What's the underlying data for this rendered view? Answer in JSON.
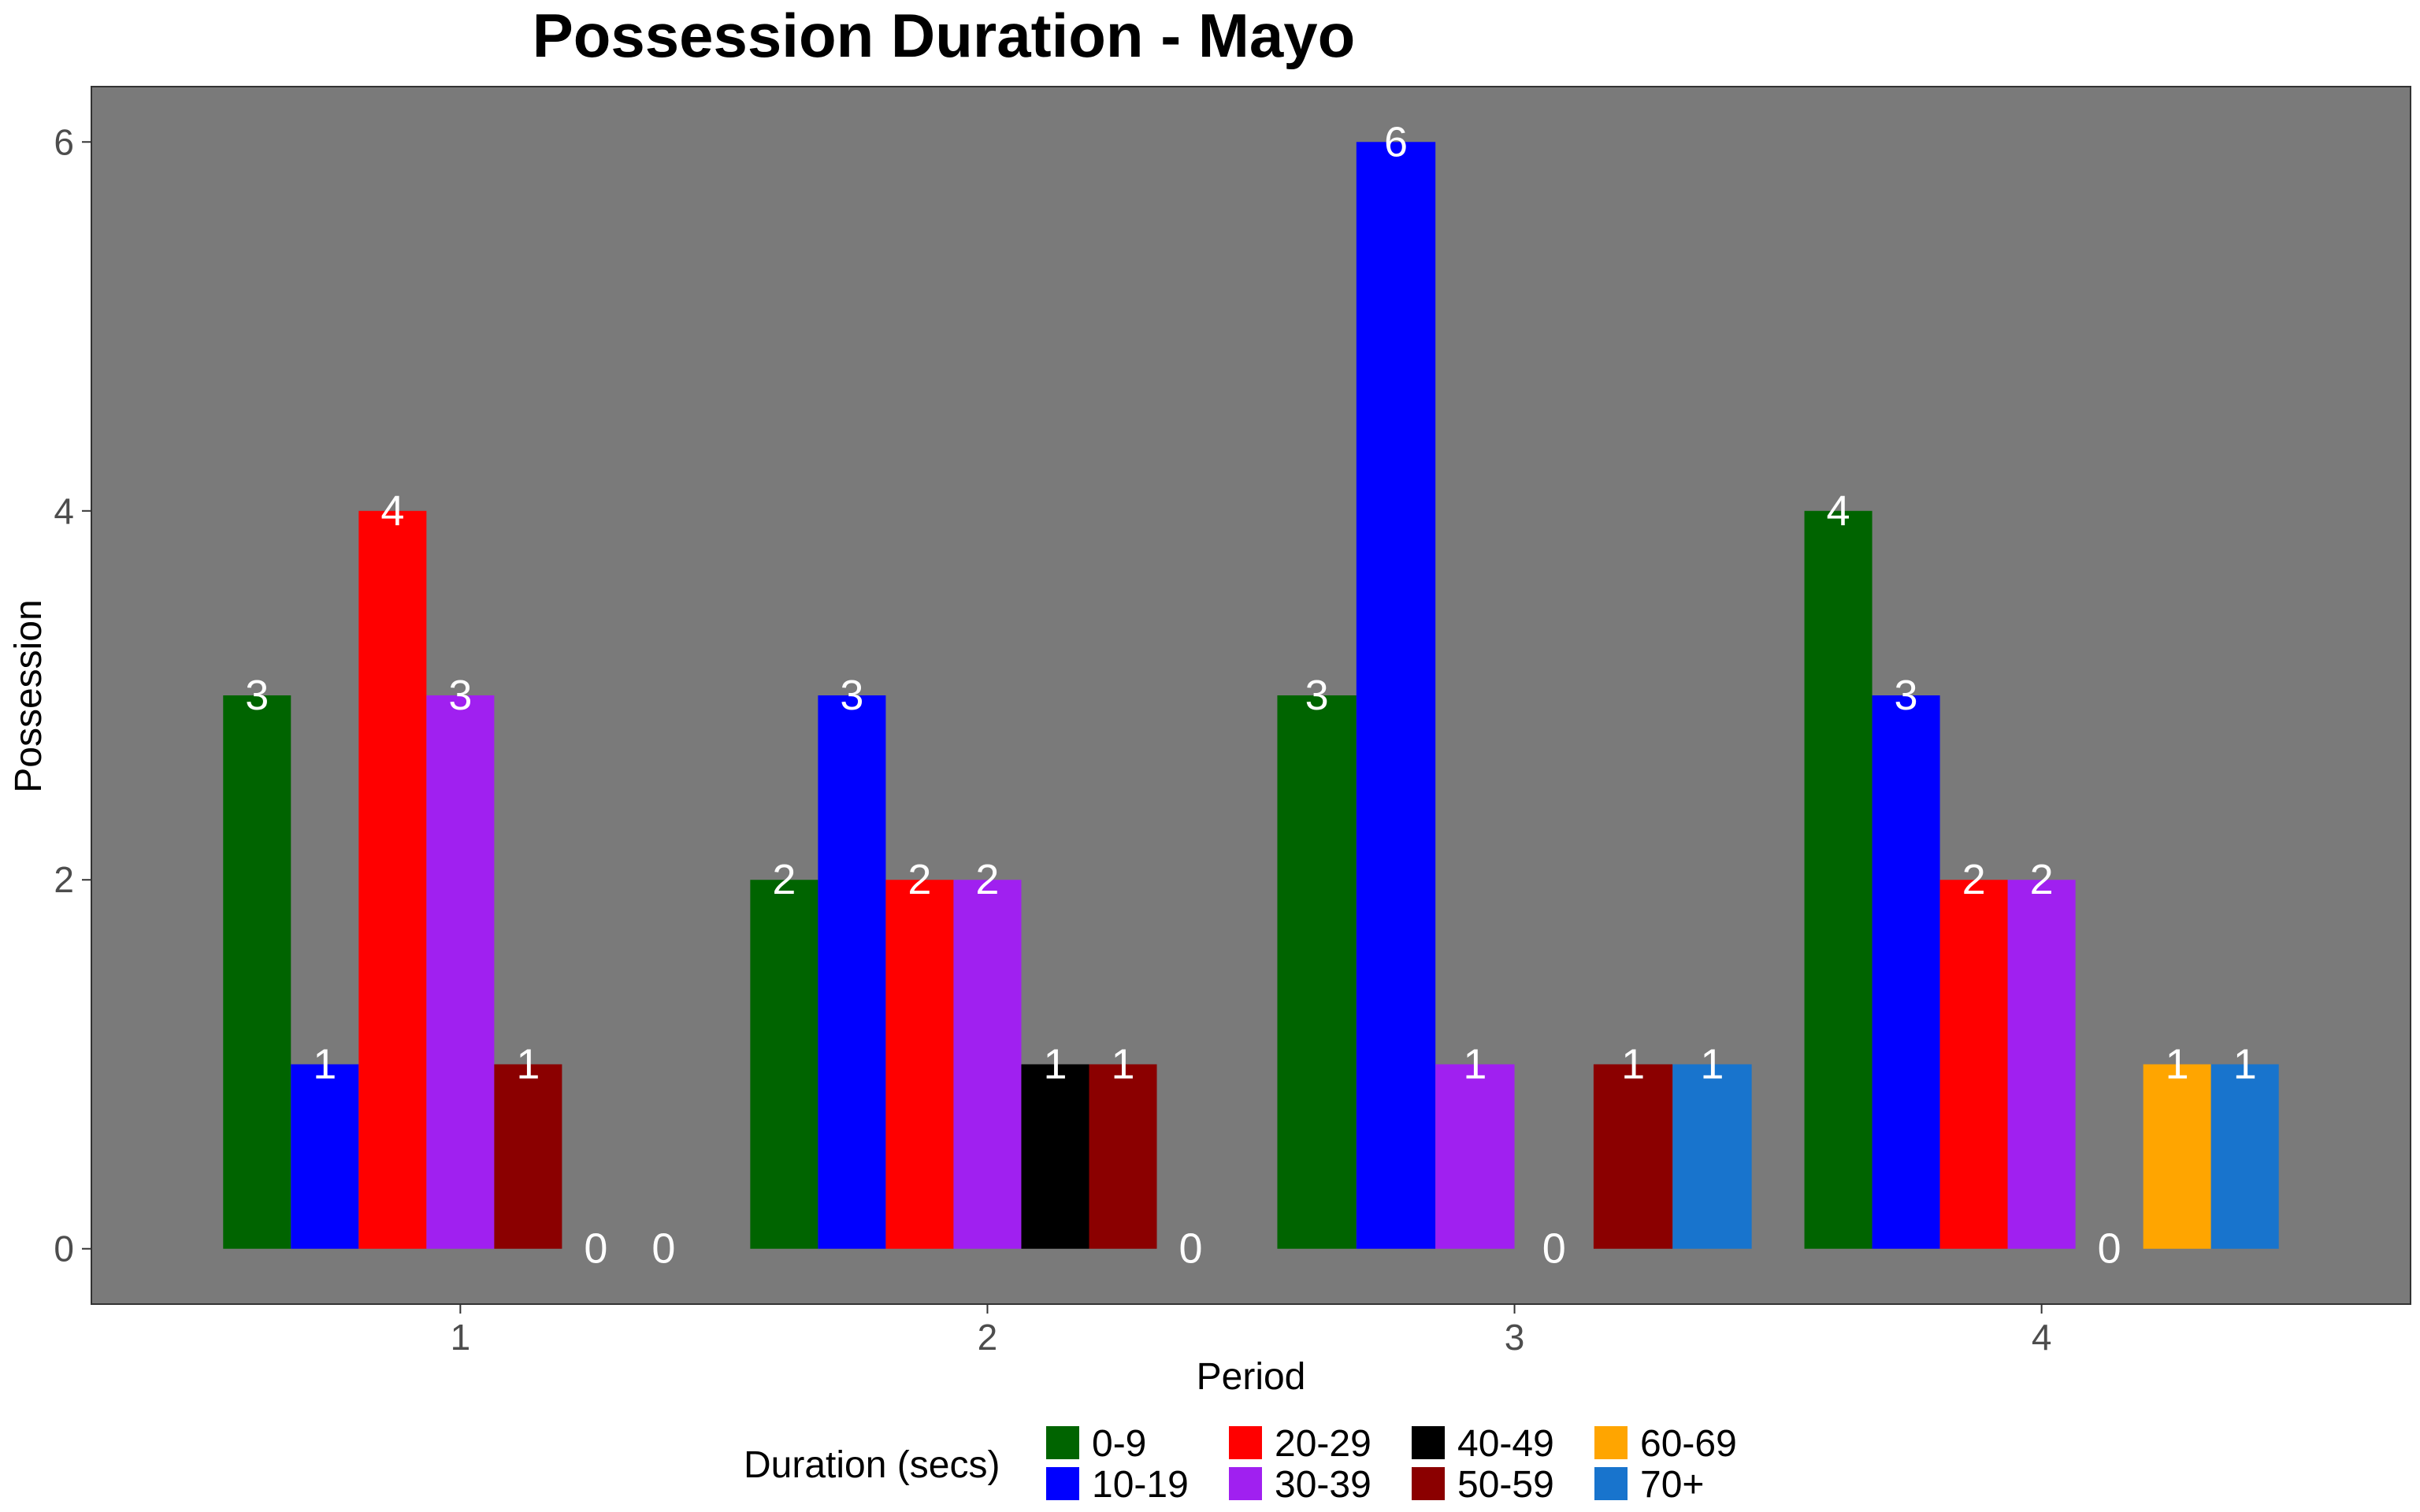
{
  "chart_data": {
    "type": "bar",
    "title": "Possession Duration - Mayo",
    "xlabel": "Period",
    "ylabel": "Possession",
    "categories": [
      "1",
      "2",
      "3",
      "4"
    ],
    "yticks": [
      "0",
      "2",
      "4",
      "6"
    ],
    "ylim": [
      -0.3,
      6.3
    ],
    "grid": false,
    "legend": {
      "title": "Duration (secs)",
      "position": "bottom",
      "entries": [
        {
          "label": "0-9",
          "color": "#006400"
        },
        {
          "label": "10-19",
          "color": "#0000FF"
        },
        {
          "label": "20-29",
          "color": "#FF0000"
        },
        {
          "label": "30-39",
          "color": "#A020F0"
        },
        {
          "label": "40-49",
          "color": "#000000"
        },
        {
          "label": "50-59",
          "color": "#8B0000"
        },
        {
          "label": "60-69",
          "color": "#FFA500"
        },
        {
          "label": "70+",
          "color": "#1874CD"
        }
      ]
    },
    "groups": [
      {
        "period": "1",
        "bars": [
          {
            "series": "0-9",
            "value": 3
          },
          {
            "series": "10-19",
            "value": 1
          },
          {
            "series": "20-29",
            "value": 4
          },
          {
            "series": "30-39",
            "value": 3
          },
          {
            "series": "50-59",
            "value": 1
          },
          {
            "series": "60-69",
            "value": 0
          },
          {
            "series": "70+",
            "value": 0
          }
        ]
      },
      {
        "period": "2",
        "bars": [
          {
            "series": "0-9",
            "value": 2
          },
          {
            "series": "10-19",
            "value": 3
          },
          {
            "series": "20-29",
            "value": 2
          },
          {
            "series": "30-39",
            "value": 2
          },
          {
            "series": "40-49",
            "value": 1
          },
          {
            "series": "50-59",
            "value": 1
          },
          {
            "series": "70+",
            "value": 0
          }
        ]
      },
      {
        "period": "3",
        "bars": [
          {
            "series": "0-9",
            "value": 3
          },
          {
            "series": "10-19",
            "value": 6
          },
          {
            "series": "30-39",
            "value": 1
          },
          {
            "series": "40-49",
            "value": 0
          },
          {
            "series": "50-59",
            "value": 1
          },
          {
            "series": "70+",
            "value": 1
          }
        ]
      },
      {
        "period": "4",
        "bars": [
          {
            "series": "0-9",
            "value": 4
          },
          {
            "series": "10-19",
            "value": 3
          },
          {
            "series": "20-29",
            "value": 2
          },
          {
            "series": "30-39",
            "value": 2
          },
          {
            "series": "50-59",
            "value": 0
          },
          {
            "series": "60-69",
            "value": 1
          },
          {
            "series": "70+",
            "value": 1
          }
        ]
      }
    ],
    "colors": {
      "panel_background": "#7A7A7A",
      "bar_label": "#FFFFFF",
      "tick_label": "#4D4D4D"
    }
  }
}
